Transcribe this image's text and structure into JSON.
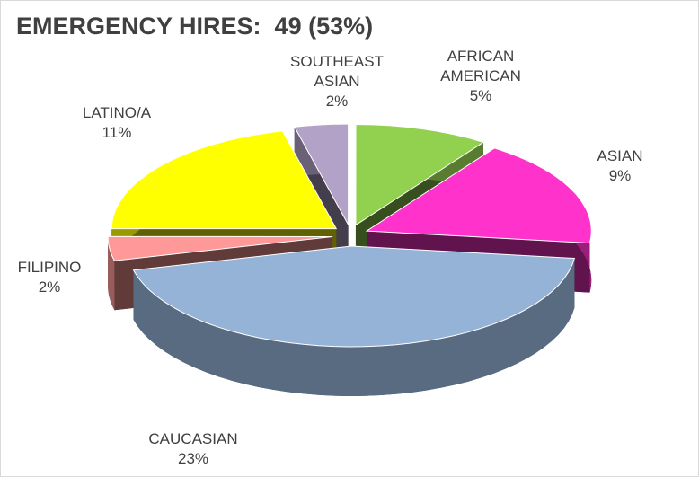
{
  "chart_data": {
    "type": "pie",
    "title": "EMERGENCY HIRES:  49 (53%)",
    "categories": [
      "AFRICAN AMERICAN",
      "ASIAN",
      "CAUCASIAN",
      "FILIPINO",
      "LATINO/A",
      "SOUTHEAST ASIAN"
    ],
    "values": [
      5,
      9,
      23,
      2,
      11,
      2
    ],
    "value_labels": [
      "5%",
      "9%",
      "23%",
      "2%",
      "11%",
      "2%"
    ],
    "colors": [
      "#92d050",
      "#ff33cc",
      "#95b3d7",
      "#ff9999",
      "#ffff00",
      "#b3a2c7"
    ]
  }
}
